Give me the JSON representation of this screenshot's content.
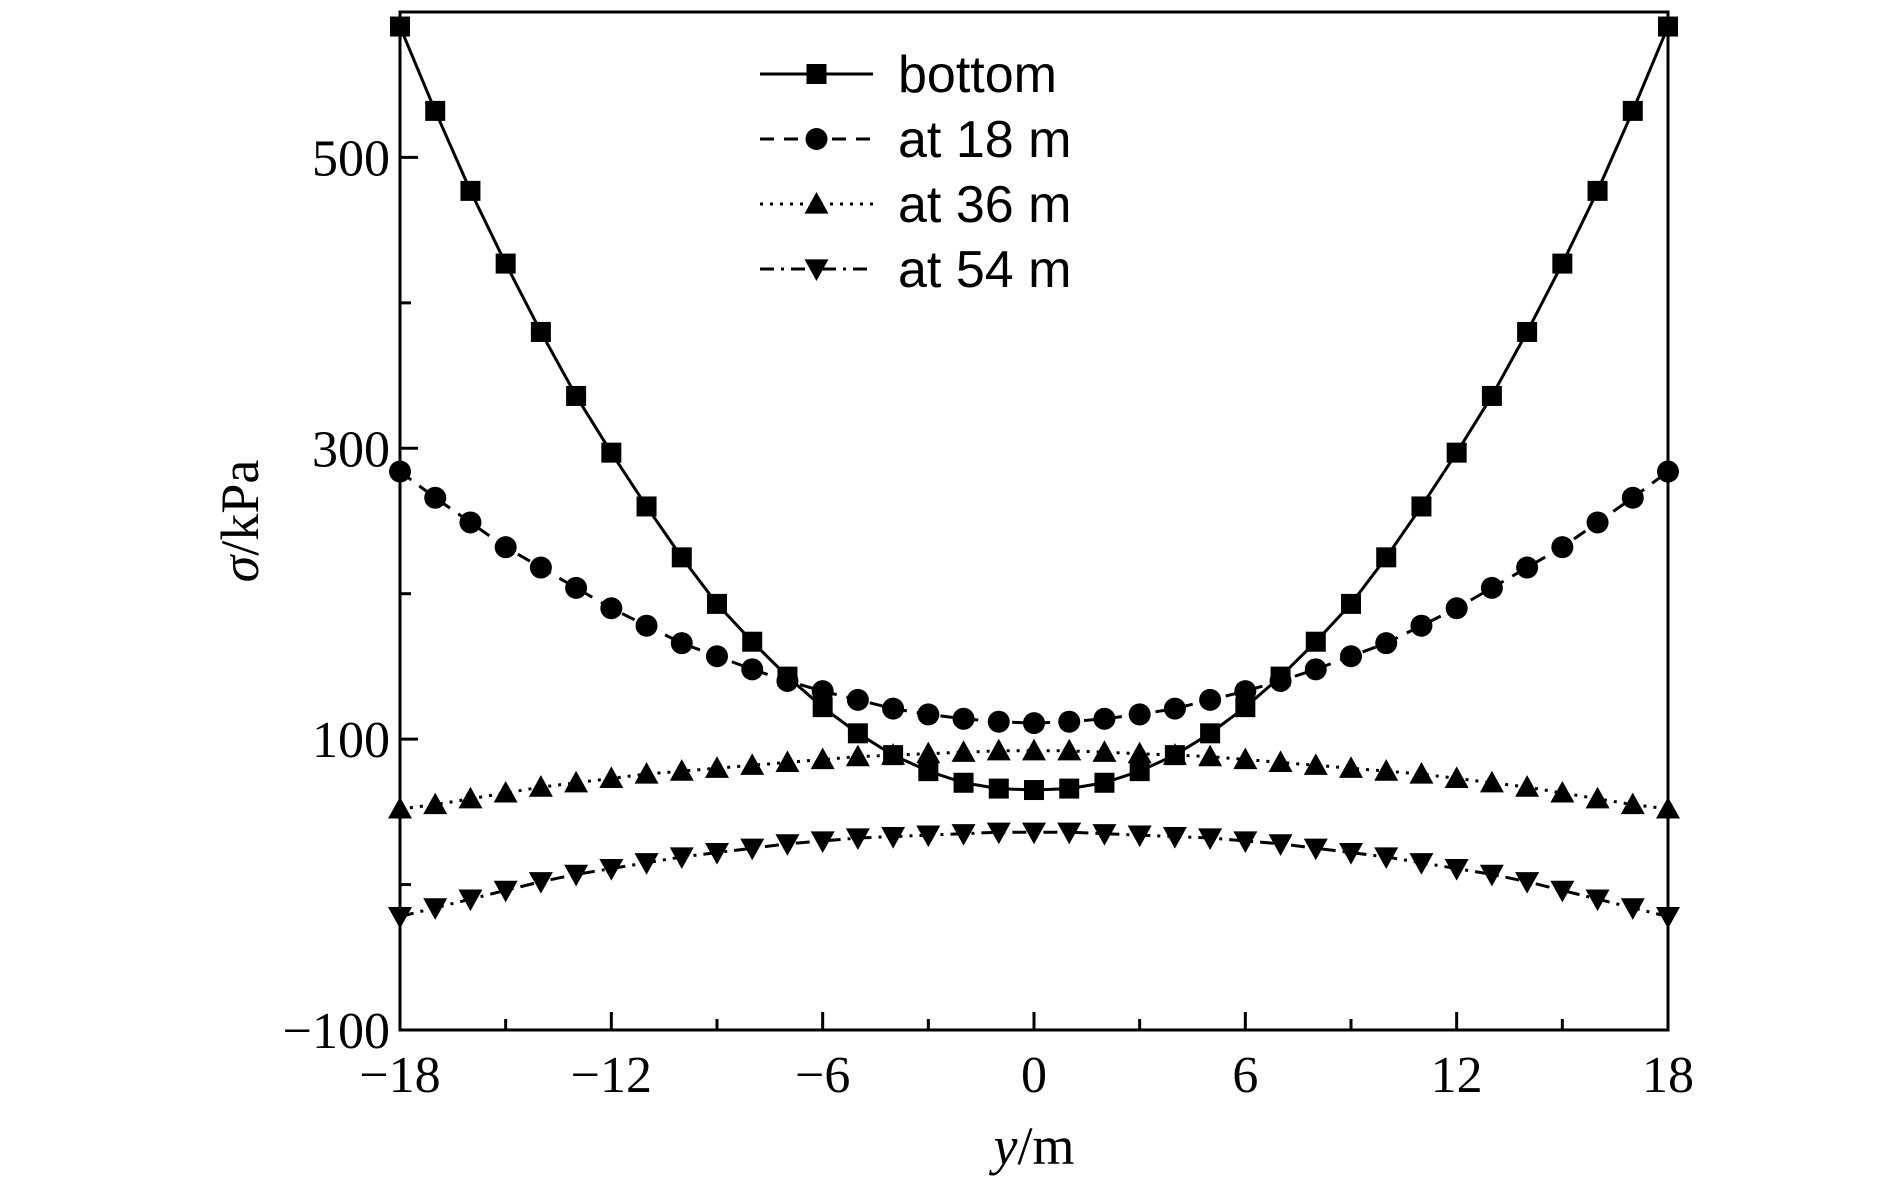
{
  "chart_data": {
    "type": "line",
    "title": "",
    "xlabel": {
      "symbol": "y",
      "unit": "/m"
    },
    "ylabel": {
      "symbol": "σ",
      "unit": "/kPa"
    },
    "xlim": [
      -18,
      18
    ],
    "ylim": [
      -100,
      600
    ],
    "x_ticks": [
      -18,
      -12,
      -6,
      0,
      6,
      12,
      18
    ],
    "x_tick_labels": [
      "−18",
      "−12",
      "−6",
      "0",
      "6",
      "12",
      "18"
    ],
    "y_labeled_ticks": [
      -100,
      100,
      300,
      500
    ],
    "y_tick_labels": [
      "−100",
      "100",
      "300",
      "500"
    ],
    "y_minor_ticks": [
      0,
      200,
      400
    ],
    "x_minor_ticks": [
      -15,
      -9,
      -3,
      3,
      9,
      15
    ],
    "grid": false,
    "legend_position": "top-center",
    "x": [
      -18,
      -17,
      -16,
      -15,
      -14,
      -13,
      -12,
      -11,
      -10,
      -9,
      -8,
      -7,
      -6,
      -5,
      -4,
      -3,
      -2,
      -1,
      0,
      1,
      2,
      3,
      4,
      5,
      6,
      7,
      8,
      9,
      10,
      11,
      12,
      13,
      14,
      15,
      16,
      17,
      18
    ],
    "series": [
      {
        "name": "bottom",
        "marker": "square",
        "line": "solid",
        "values": [
          590,
          532,
          477,
          427,
          380,
          336,
          297,
          260,
          225,
          193,
          167,
          143,
          122,
          104,
          89,
          78,
          70,
          66,
          65,
          66,
          70,
          78,
          89,
          104,
          122,
          143,
          167,
          193,
          225,
          260,
          297,
          336,
          380,
          427,
          477,
          532,
          590
        ]
      },
      {
        "name": "at 18 m",
        "marker": "circle",
        "line": "dashed",
        "values": [
          284,
          266,
          249,
          232,
          218,
          204,
          190,
          178,
          166,
          157,
          148,
          140,
          133,
          127,
          121,
          117,
          114,
          112,
          111,
          112,
          114,
          117,
          121,
          127,
          133,
          140,
          148,
          157,
          166,
          178,
          190,
          204,
          218,
          232,
          249,
          266,
          284
        ]
      },
      {
        "name": "at 36 m",
        "marker": "triangle-up",
        "line": "dotted",
        "values": [
          52,
          55,
          59,
          63,
          67,
          70,
          73,
          76,
          78,
          80,
          82,
          84,
          86,
          88,
          89,
          90,
          91,
          92,
          92,
          92,
          91,
          90,
          89,
          88,
          86,
          84,
          82,
          80,
          78,
          76,
          73,
          70,
          67,
          63,
          59,
          55,
          52
        ]
      },
      {
        "name": "at 54 m",
        "marker": "triangle-down",
        "line": "dashdot",
        "values": [
          -22,
          -16,
          -10,
          -4,
          2,
          7,
          11,
          15,
          19,
          22,
          25,
          28,
          30,
          32,
          33,
          34,
          35,
          36,
          36,
          36,
          35,
          34,
          33,
          32,
          30,
          28,
          25,
          22,
          19,
          15,
          11,
          7,
          2,
          -4,
          -10,
          -16,
          -22
        ]
      }
    ]
  }
}
